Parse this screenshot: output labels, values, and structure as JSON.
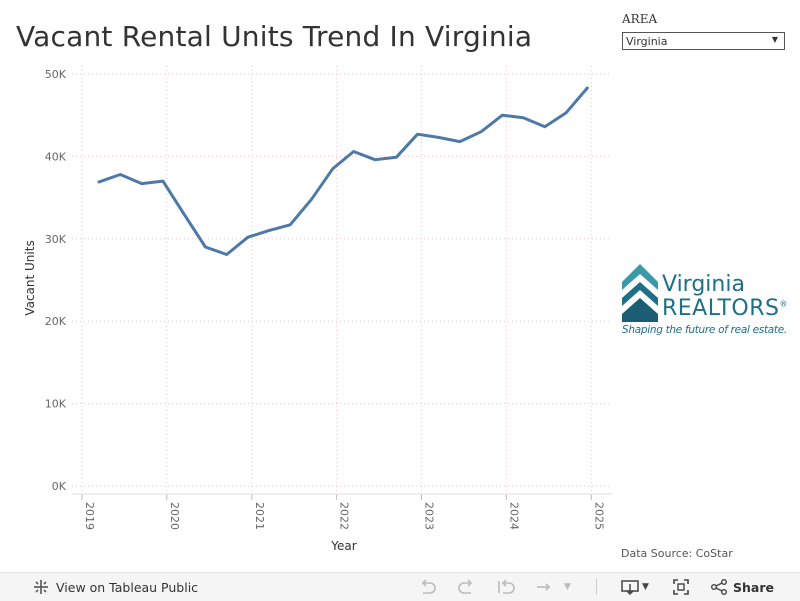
{
  "title": "Vacant Rental Units Trend In Virginia",
  "filter": {
    "label": "AREA",
    "value": "Virginia"
  },
  "chart_data": {
    "type": "line",
    "xlabel": "Year",
    "ylabel": "Vacant Units",
    "ylim": [
      0,
      50000
    ],
    "yticks": [
      0,
      10000,
      20000,
      30000,
      40000,
      50000
    ],
    "ytick_labels": [
      "0K",
      "10K",
      "20K",
      "30K",
      "40K",
      "50K"
    ],
    "x_range": [
      "2019-01-01",
      "2025-03-01"
    ],
    "xtick_labels": [
      "2019",
      "2020",
      "2021",
      "2022",
      "2023",
      "2024",
      "2025"
    ],
    "grid": true,
    "line_color": "#4e79a7",
    "x": [
      "2019-03",
      "2019-06",
      "2019-09",
      "2019-12",
      "2020-03",
      "2020-06",
      "2020-09",
      "2020-12",
      "2021-03",
      "2021-06",
      "2021-09",
      "2021-12",
      "2022-03",
      "2022-06",
      "2022-09",
      "2022-12",
      "2023-03",
      "2023-06",
      "2023-09",
      "2023-12",
      "2024-03",
      "2024-06",
      "2024-09",
      "2024-12"
    ],
    "values": [
      36900,
      37800,
      36700,
      37000,
      33000,
      29000,
      28100,
      30200,
      31000,
      31700,
      34800,
      38500,
      40600,
      39600,
      39900,
      42700,
      42300,
      41800,
      43000,
      45000,
      44700,
      43600,
      45300,
      48300
    ]
  },
  "logo": {
    "line1": "Virginia",
    "line2": "REALTORS",
    "registered": "®",
    "tagline": "Shaping the future of real estate."
  },
  "source": "Data Source: CoStar",
  "toolbar": {
    "view_label": "View on Tableau Public",
    "share_label": "Share"
  },
  "colors": {
    "line": "#4e79a7",
    "grid": "#e8c7d0",
    "brand": "#1f6f86"
  }
}
